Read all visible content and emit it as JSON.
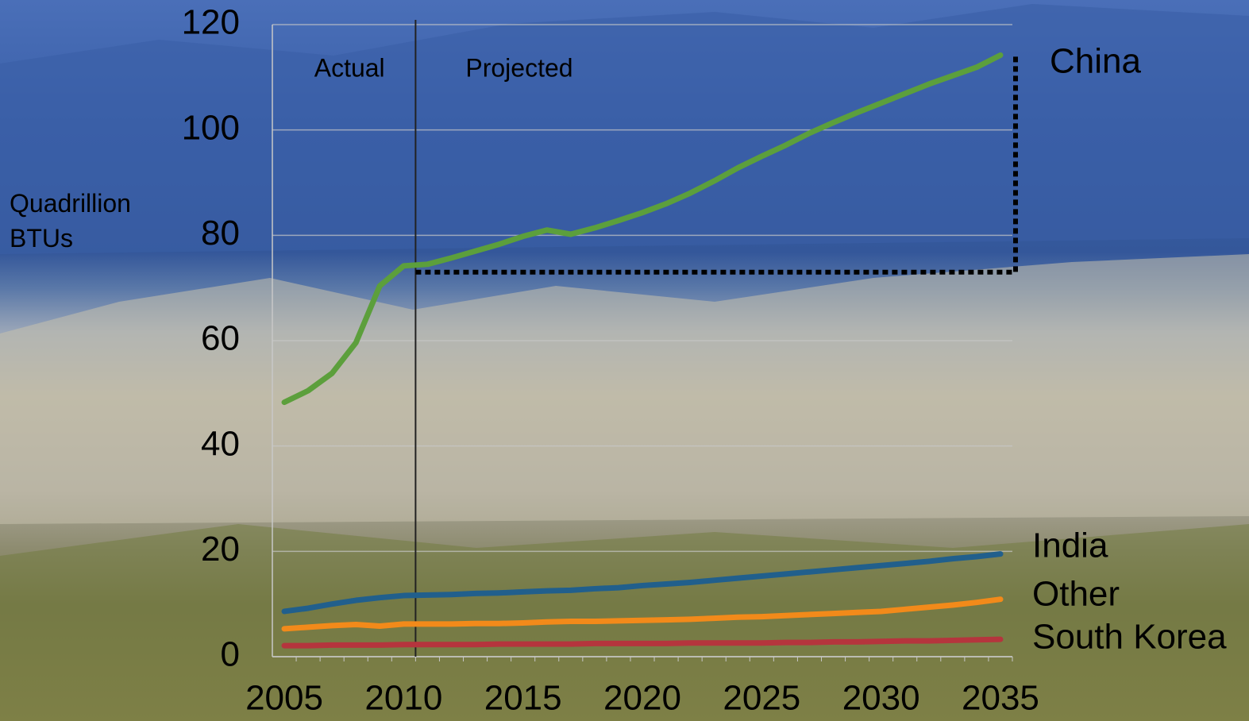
{
  "chart_data": {
    "type": "line",
    "y_label": "Quadrillion BTUs",
    "annotations": [
      "Actual",
      "Projected"
    ],
    "divider_x": 2010.5,
    "bracket": {
      "x0": 2010.5,
      "x1": 2035.5,
      "y0": 73,
      "y1": 114
    },
    "x": [
      2005,
      2006,
      2007,
      2008,
      2009,
      2010,
      2011,
      2012,
      2013,
      2014,
      2015,
      2016,
      2017,
      2018,
      2019,
      2020,
      2021,
      2022,
      2023,
      2024,
      2025,
      2026,
      2027,
      2028,
      2029,
      2030,
      2031,
      2032,
      2033,
      2034,
      2035
    ],
    "series": [
      {
        "name": "China",
        "color": "#5c9f3c",
        "values": [
          48.3,
          50.5,
          53.8,
          59.6,
          70.4,
          74.2,
          74.5,
          75.7,
          77,
          78.3,
          79.8,
          81,
          80.2,
          81.4,
          82.8,
          84.3,
          86,
          88,
          90.3,
          92.8,
          95,
          97.1,
          99.4,
          101.4,
          103.3,
          105.1,
          106.9,
          108.7,
          110.3,
          111.9,
          114.2
        ]
      },
      {
        "name": "India",
        "color": "#215f8c",
        "values": [
          8.6,
          9.2,
          10,
          10.7,
          11.2,
          11.6,
          11.7,
          11.8,
          12,
          12.1,
          12.3,
          12.5,
          12.6,
          12.9,
          13.1,
          13.5,
          13.8,
          14.1,
          14.5,
          14.9,
          15.3,
          15.7,
          16.1,
          16.5,
          16.9,
          17.3,
          17.7,
          18.1,
          18.6,
          19,
          19.5
        ]
      },
      {
        "name": "Other",
        "color": "#f28a1a",
        "values": [
          5.3,
          5.6,
          5.9,
          6.1,
          5.8,
          6.2,
          6.2,
          6.2,
          6.3,
          6.3,
          6.4,
          6.6,
          6.7,
          6.7,
          6.8,
          6.9,
          7,
          7.1,
          7.3,
          7.5,
          7.6,
          7.8,
          8,
          8.2,
          8.4,
          8.6,
          9,
          9.4,
          9.8,
          10.3,
          10.9
        ]
      },
      {
        "name": "South Korea",
        "color": "#b5353d",
        "values": [
          2.1,
          2.1,
          2.2,
          2.2,
          2.2,
          2.3,
          2.3,
          2.3,
          2.3,
          2.4,
          2.4,
          2.4,
          2.4,
          2.5,
          2.5,
          2.5,
          2.5,
          2.6,
          2.6,
          2.6,
          2.6,
          2.7,
          2.7,
          2.8,
          2.8,
          2.9,
          3,
          3,
          3.1,
          3.2,
          3.3
        ]
      }
    ],
    "xlim": [
      2004.5,
      2035.5
    ],
    "xticks": [
      2005,
      2010,
      2015,
      2020,
      2025,
      2030,
      2035
    ],
    "ylim": [
      0,
      120
    ],
    "yticks": [
      0,
      20,
      40,
      60,
      80,
      100,
      120
    ],
    "grid": true
  }
}
